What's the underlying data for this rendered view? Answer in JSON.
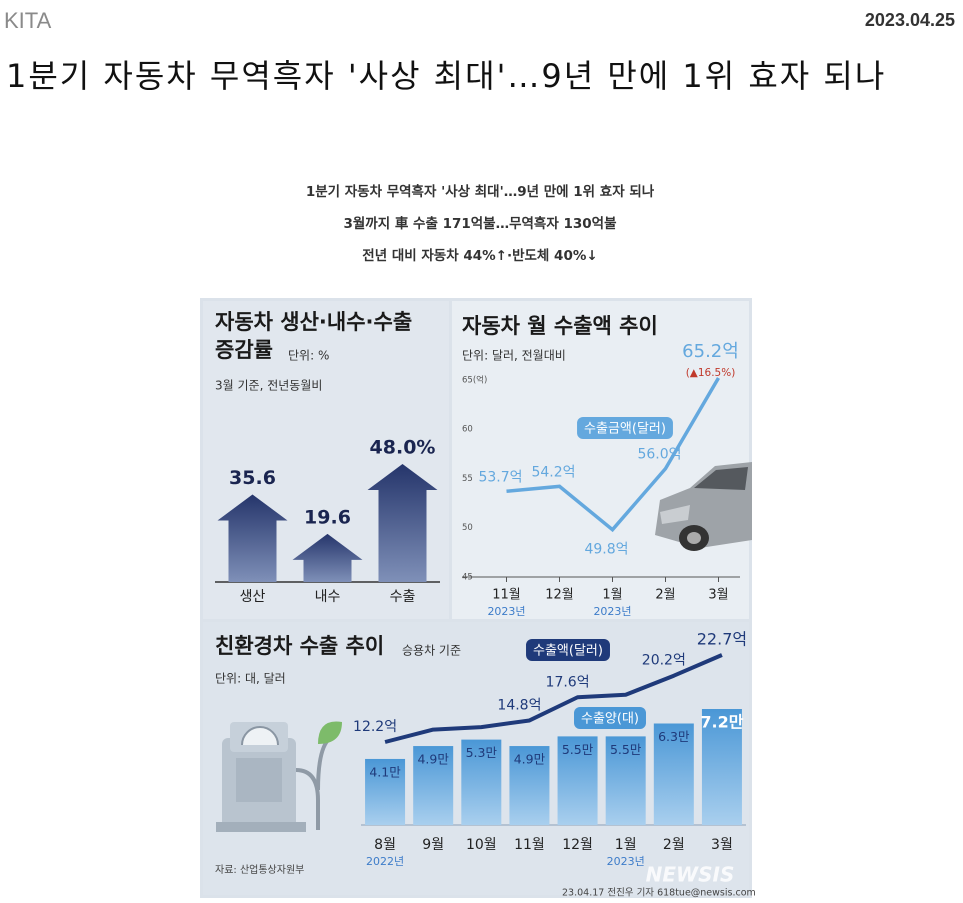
{
  "header": {
    "source": "KITA",
    "date": "2023.04.25",
    "title": "1분기 자동차 무역흑자 '사상 최대'…9년 만에 1위 효자 되나"
  },
  "infographic": {
    "headlines": [
      "1분기 자동차 무역흑자 '사상 최대'…9년 만에 1위 효자 되나",
      "3월까지 車 수출 171억불…무역흑자 130억불",
      "전년 대비 자동차 44%↑·반도체 40%↓"
    ],
    "source_note": "자료: 산업통상자원부",
    "credit": "23.04.17 전진우 기자 618tue@newsis.com",
    "watermark": "NEWSIS"
  },
  "chart_data": [
    {
      "type": "bar",
      "title": "자동차 생산·내수·수출 증감률",
      "unit": "단위: %",
      "note": "3월 기준, 전년동월비",
      "categories": [
        "생산",
        "내수",
        "수출"
      ],
      "values": [
        35.6,
        19.6,
        48.0
      ],
      "value_labels": [
        "35.6",
        "19.6",
        "48.0%"
      ],
      "color": "#25356b"
    },
    {
      "type": "line",
      "title": "자동차 월 수출액 추이",
      "unit": "단위: 달러, 전월대비",
      "categories": [
        "11월",
        "12월",
        "1월",
        "2월",
        "3월"
      ],
      "x_sublabels": [
        "2023년",
        null,
        "2023년",
        null,
        null
      ],
      "series": [
        {
          "name": "수출금액(달러)",
          "color": "#64a8de",
          "values": [
            53.7,
            54.2,
            49.8,
            56.0,
            65.2
          ],
          "value_labels": [
            "53.7억",
            "54.2억",
            "49.8억",
            "56.0억",
            "65.2억"
          ]
        }
      ],
      "annotation": "(▲16.5%)",
      "ylim": [
        45,
        65.5
      ],
      "yticks": [
        45,
        50,
        55,
        60,
        {
          "value": 65,
          "label": "65(억)"
        }
      ]
    },
    {
      "type": "bar-line",
      "title": "친환경차 수출 추이",
      "subtitle": "승용차 기준",
      "unit": "단위: 대, 달러",
      "categories": [
        "8월",
        "9월",
        "10월",
        "11월",
        "12월",
        "1월",
        "2월",
        "3월"
      ],
      "x_sublabels": [
        "2022년",
        null,
        null,
        null,
        null,
        "2023년",
        null,
        null
      ],
      "series": [
        {
          "name": "수출양(대)",
          "type": "bar",
          "color": "#4a97d6",
          "values": [
            4.1,
            4.9,
            5.3,
            4.9,
            5.5,
            5.5,
            6.3,
            7.2
          ],
          "value_labels": [
            "4.1만",
            "4.9만",
            "5.3만",
            "4.9만",
            "5.5만",
            "5.5만",
            "6.3만",
            "7.2만"
          ]
        },
        {
          "name": "수출액(달러)",
          "type": "line",
          "color": "#1f3a7a",
          "values": [
            12.2,
            13.7,
            14.0,
            14.8,
            17.6,
            17.9,
            20.2,
            22.7
          ],
          "value_labels": [
            "12.2억",
            null,
            null,
            "14.8억",
            "17.6억",
            null,
            "20.2억",
            "22.7억"
          ]
        }
      ]
    }
  ]
}
